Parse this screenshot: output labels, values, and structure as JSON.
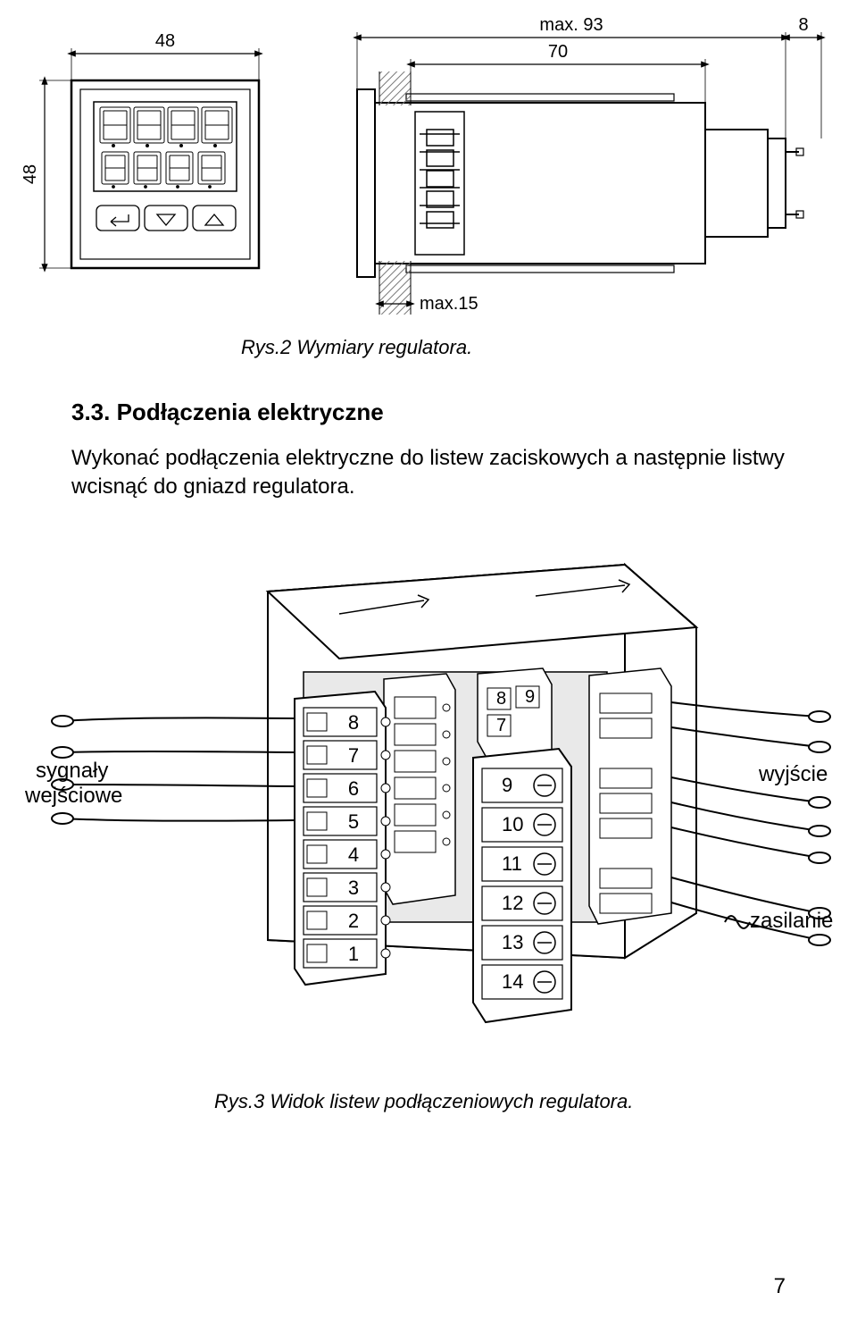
{
  "dims": {
    "front_width": "48",
    "front_height": "48",
    "depth_max": "max. 93",
    "clamp_gap": "8",
    "body_depth": "70",
    "panel_thickness": "max.15"
  },
  "fig2_caption": "Rys.2 Wymiary regulatora.",
  "section_heading": "3.3. Podłączenia elektryczne",
  "section_body": "Wykonać podłączenia elektryczne do listew zaciskowych a następnie listwy wcisnąć do gniazd regulatora.",
  "fig3": {
    "label_inputs_l1": "sygnały",
    "label_inputs_l2": "wejściowe",
    "label_output": "wyjście",
    "label_power": "zasilanie",
    "left_terminals": [
      "8",
      "7",
      "6",
      "5",
      "4",
      "3",
      "2",
      "1"
    ],
    "right_top_a": "8",
    "right_top_b": "9",
    "right_top_c": "7",
    "right_terminals": [
      "9",
      "10",
      "11",
      "12",
      "13",
      "14"
    ]
  },
  "fig3_caption": "Rys.3 Widok listew podłączeniowych regulatora.",
  "page_number": "7",
  "colors": {
    "ink": "#000000",
    "bg": "#ffffff",
    "hatch": "#7a7a7a",
    "light": "#f3f3f3"
  }
}
